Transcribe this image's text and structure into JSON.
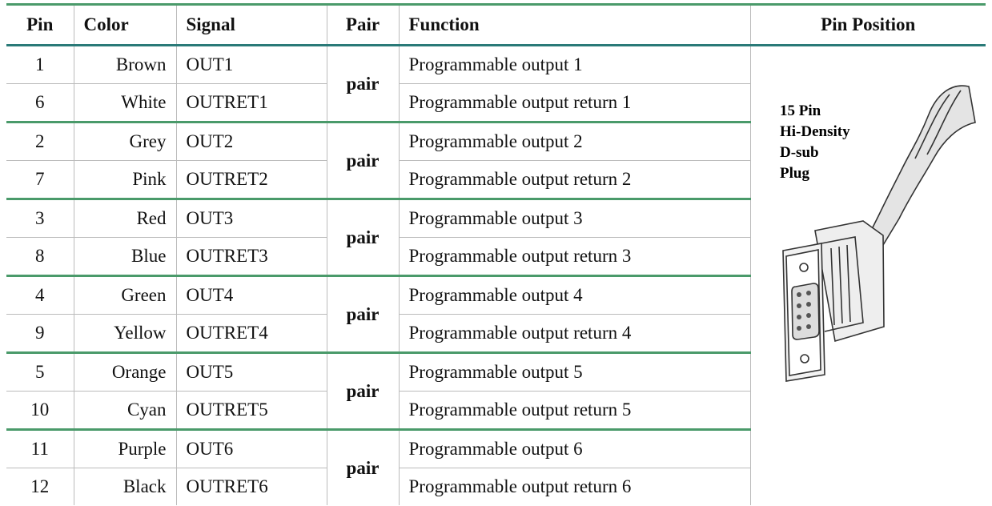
{
  "table": {
    "header": [
      "Pin",
      "Color",
      "Signal",
      "Pair",
      "Function",
      "Pin Position"
    ],
    "groups": [
      {
        "pair": "pair",
        "rows": [
          [
            "1",
            "Brown",
            "OUT1",
            "Programmable output 1"
          ],
          [
            "6",
            "White",
            "OUTRET1",
            "Programmable output return 1"
          ]
        ]
      },
      {
        "pair": "pair",
        "rows": [
          [
            "2",
            "Grey",
            "OUT2",
            "Programmable output 2"
          ],
          [
            "7",
            "Pink",
            "OUTRET2",
            "Programmable output return 2"
          ]
        ]
      },
      {
        "pair": "pair",
        "rows": [
          [
            "3",
            "Red",
            "OUT3",
            "Programmable output 3"
          ],
          [
            "8",
            "Blue",
            "OUTRET3",
            "Programmable output return 3"
          ]
        ]
      },
      {
        "pair": "pair",
        "rows": [
          [
            "4",
            "Green",
            "OUT4",
            "Programmable output 4"
          ],
          [
            "9",
            "Yellow",
            "OUTRET4",
            "Programmable output return 4"
          ]
        ]
      },
      {
        "pair": "pair",
        "rows": [
          [
            "5",
            "Orange",
            "OUT5",
            "Programmable output 5"
          ],
          [
            "10",
            "Cyan",
            "OUTRET5",
            "Programmable output return 5"
          ]
        ]
      },
      {
        "pair": "pair",
        "rows": [
          [
            "11",
            "Purple",
            "OUT6",
            "Programmable output 6"
          ],
          [
            "12",
            "Black",
            "OUTRET6",
            "Programmable output return 6"
          ]
        ]
      }
    ]
  },
  "connector": {
    "label": [
      "15 Pin",
      "Hi-Density",
      "D-sub",
      "Plug"
    ]
  }
}
